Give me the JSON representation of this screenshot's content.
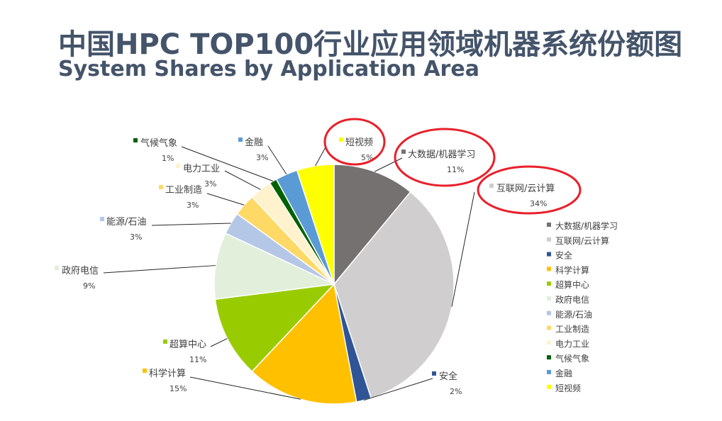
{
  "title": "中国HPC TOP100行业应用领域机器系统份额图",
  "subtitle": "System Shares by Application Area",
  "chart_data": {
    "type": "pie",
    "categories": [
      "大数据/机器学习",
      "互联网/云计算",
      "安全",
      "科学计算",
      "超算中心",
      "政府电信",
      "能源/石油",
      "工业制造",
      "电力工业",
      "气候气象",
      "金融",
      "短视频"
    ],
    "values": [
      11,
      34,
      2,
      15,
      11,
      9,
      3,
      3,
      3,
      1,
      3,
      5
    ],
    "value_labels": [
      "11%",
      "34%",
      "2%",
      "15%",
      "11%",
      "9%",
      "3%",
      "3%",
      "3%",
      "1%",
      "3%",
      "5%"
    ],
    "colors": [
      "#767171",
      "#d0cece",
      "#2f5597",
      "#ffc000",
      "#99cc00",
      "#e2efda",
      "#b4c7e7",
      "#ffd966",
      "#fff2cc",
      "#006100",
      "#5b9bd5",
      "#ffff00"
    ],
    "legend_position": "right",
    "highlighted": [
      "短视频",
      "大数据/机器学习",
      "互联网/云计算"
    ]
  }
}
